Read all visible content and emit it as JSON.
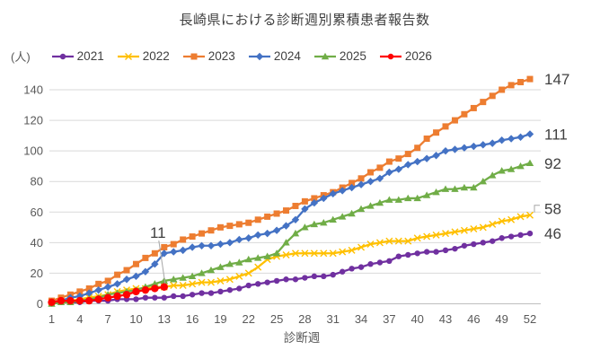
{
  "title": "長崎県における診断週別累積患者報告数",
  "y_unit_label": "(人)",
  "x_axis_label": "診断週",
  "chart_data": {
    "type": "line",
    "title": "長崎県における診断週別累積患者報告数",
    "xlabel": "診断週",
    "ylabel": "(人)",
    "ylim": [
      0,
      140
    ],
    "grid": true,
    "legend_position": "top",
    "y_ticks": [
      0,
      20,
      40,
      60,
      80,
      100,
      120,
      140
    ],
    "x_ticks": [
      1,
      4,
      7,
      10,
      13,
      16,
      19,
      22,
      25,
      28,
      31,
      34,
      37,
      40,
      43,
      46,
      49,
      52
    ],
    "x_is_week_number": true,
    "series": [
      {
        "name": "2021",
        "color": "#7030A0",
        "marker": "circle",
        "values": [
          0,
          1,
          1,
          1,
          2,
          2,
          2,
          3,
          3,
          3,
          4,
          4,
          4,
          5,
          5,
          6,
          7,
          7,
          8,
          9,
          10,
          12,
          13,
          14,
          15,
          16,
          16,
          17,
          18,
          18,
          19,
          21,
          23,
          24,
          26,
          27,
          28,
          31,
          32,
          33,
          34,
          34,
          35,
          36,
          38,
          39,
          40,
          41,
          43,
          44,
          45,
          46
        ]
      },
      {
        "name": "2022",
        "color": "#FFC000",
        "marker": "x",
        "values": [
          1,
          2,
          2,
          3,
          4,
          5,
          6,
          8,
          9,
          10,
          10,
          11,
          11,
          12,
          12,
          13,
          14,
          14,
          15,
          16,
          18,
          20,
          24,
          29,
          31,
          32,
          33,
          33,
          33,
          33,
          33,
          34,
          35,
          37,
          39,
          40,
          41,
          41,
          41,
          43,
          44,
          45,
          46,
          47,
          48,
          49,
          50,
          52,
          54,
          55,
          57,
          58
        ]
      },
      {
        "name": "2023",
        "color": "#ED7D31",
        "marker": "square",
        "values": [
          2,
          4,
          6,
          8,
          10,
          13,
          15,
          19,
          22,
          26,
          30,
          33,
          37,
          39,
          42,
          44,
          46,
          48,
          50,
          51,
          52,
          53,
          55,
          57,
          59,
          61,
          64,
          67,
          69,
          71,
          73,
          76,
          79,
          82,
          86,
          89,
          93,
          95,
          98,
          102,
          108,
          112,
          116,
          120,
          124,
          128,
          132,
          136,
          140,
          143,
          145,
          147
        ]
      },
      {
        "name": "2024",
        "color": "#4472C4",
        "marker": "diamond",
        "values": [
          1,
          2,
          4,
          5,
          7,
          9,
          11,
          13,
          16,
          18,
          21,
          26,
          33,
          34,
          35,
          37,
          38,
          38,
          39,
          40,
          42,
          43,
          45,
          46,
          48,
          51,
          55,
          62,
          66,
          69,
          72,
          74,
          76,
          78,
          80,
          82,
          86,
          88,
          91,
          93,
          95,
          97,
          100,
          101,
          102,
          103,
          104,
          105,
          107,
          108,
          109,
          111
        ]
      },
      {
        "name": "2025",
        "color": "#70AD47",
        "marker": "triangle",
        "values": [
          0,
          1,
          1,
          2,
          3,
          4,
          6,
          7,
          8,
          9,
          11,
          13,
          15,
          16,
          17,
          18,
          20,
          22,
          24,
          26,
          27,
          29,
          30,
          31,
          33,
          40,
          46,
          50,
          52,
          53,
          55,
          57,
          59,
          62,
          64,
          66,
          68,
          68,
          69,
          69,
          71,
          73,
          75,
          75,
          76,
          76,
          80,
          84,
          87,
          88,
          90,
          92
        ]
      },
      {
        "name": "2026",
        "color": "#FF0000",
        "marker": "circle",
        "values": [
          1,
          2,
          2,
          2,
          2,
          3,
          4,
          5,
          6,
          8,
          9,
          10,
          11
        ]
      }
    ],
    "end_labels": [
      {
        "series": "2023",
        "text": "147",
        "leader": false
      },
      {
        "series": "2024",
        "text": "111",
        "leader": false
      },
      {
        "series": "2025",
        "text": "92",
        "leader": false
      },
      {
        "series": "2022",
        "text": "58",
        "leader": true
      },
      {
        "series": "2021",
        "text": "46",
        "leader": false
      }
    ],
    "annotation": {
      "text": "11",
      "series": "2026",
      "week": 13
    }
  },
  "colors": {
    "grid": "#D9D9D9",
    "axis": "#BFBFBF",
    "tick_text": "#595959",
    "title_text": "#404040",
    "leader_line": "#A6A6A6"
  }
}
